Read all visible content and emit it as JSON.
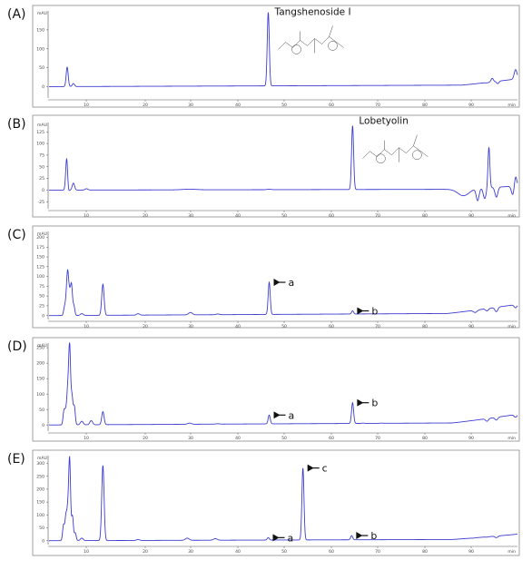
{
  "figure": {
    "colors": {
      "trace": "#3c3ccf",
      "frame": "#8a8a8a",
      "axis": "#555555",
      "text": "#111111"
    }
  },
  "chart_data": [
    {
      "type": "line",
      "panel": "(A)",
      "y_unit": "mAU",
      "x_unit": "min",
      "xlim": [
        0,
        100
      ],
      "ylim": [
        -30,
        200
      ],
      "x_ticks": [
        "10",
        "20",
        "30",
        "40",
        "50",
        "60",
        "70",
        "80",
        "90"
      ],
      "y_ticks": [
        0,
        50,
        100,
        150
      ],
      "peaks": [
        {
          "x": 3.9,
          "y": 62,
          "w": 0.22
        },
        {
          "x": 4.0,
          "y": -12,
          "w": 0.2
        },
        {
          "x": 5.2,
          "y": 8,
          "w": 0.25
        },
        {
          "x": 46.8,
          "y": 196,
          "w": 0.22
        },
        {
          "x": 93.5,
          "y": 10,
          "w": 0.3
        },
        {
          "x": 94.6,
          "y": 22,
          "w": 0.25
        },
        {
          "x": 95.8,
          "y": 8,
          "w": 0.25
        },
        {
          "x": 99.6,
          "y": 45,
          "w": 0.3
        }
      ],
      "baseline": {
        "start": 0,
        "end": 18,
        "rise_start": 88
      },
      "annotations": [
        {
          "text": "Tangshenoside I",
          "x": 47,
          "y": 175
        }
      ]
    },
    {
      "type": "line",
      "panel": "(B)",
      "y_unit": "mAU",
      "x_unit": "min",
      "xlim": [
        0,
        100
      ],
      "ylim": [
        -40,
        145
      ],
      "x_ticks": [
        "10",
        "20",
        "30",
        "40",
        "50",
        "60",
        "70",
        "80",
        "90"
      ],
      "y_ticks": [
        -25,
        0,
        25,
        50,
        75,
        100,
        125
      ],
      "peaks": [
        {
          "x": 3.8,
          "y": 78,
          "w": 0.22
        },
        {
          "x": 4.0,
          "y": -20,
          "w": 0.2
        },
        {
          "x": 5.2,
          "y": 15,
          "w": 0.25
        },
        {
          "x": 8.0,
          "y": 3,
          "w": 0.3
        },
        {
          "x": 30.0,
          "y": 2,
          "w": 1.5
        },
        {
          "x": 47.0,
          "y": 2,
          "w": 0.4
        },
        {
          "x": 64.8,
          "y": 138,
          "w": 0.22
        },
        {
          "x": 88.5,
          "y": -12,
          "w": 1.2
        },
        {
          "x": 91.5,
          "y": -22,
          "w": 0.3
        },
        {
          "x": 93.0,
          "y": -18,
          "w": 0.3
        },
        {
          "x": 93.9,
          "y": 92,
          "w": 0.2
        },
        {
          "x": 95.5,
          "y": -15,
          "w": 0.3
        },
        {
          "x": 99.0,
          "y": -10,
          "w": 0.3
        },
        {
          "x": 99.6,
          "y": 30,
          "w": 0.25
        }
      ],
      "baseline": {
        "start": 0,
        "end": 8,
        "rise_start": 88
      },
      "annotations": [
        {
          "text": "Lobetyolin",
          "x": 65,
          "y": 130
        }
      ]
    },
    {
      "type": "line",
      "panel": "(C)",
      "y_unit": "mAU",
      "x_unit": "min",
      "xlim": [
        0,
        100
      ],
      "ylim": [
        -10,
        215
      ],
      "x_ticks": [
        "10",
        "20",
        "30",
        "40",
        "50",
        "60",
        "70",
        "80",
        "90"
      ],
      "y_ticks": [
        0,
        25,
        50,
        75,
        100,
        125,
        150,
        175,
        200
      ],
      "peaks": [
        {
          "x": 3.3,
          "y": 20,
          "w": 0.2
        },
        {
          "x": 3.7,
          "y": 38,
          "w": 0.2
        },
        {
          "x": 4.0,
          "y": 98,
          "w": 0.2
        },
        {
          "x": 4.4,
          "y": 50,
          "w": 0.2
        },
        {
          "x": 4.8,
          "y": 75,
          "w": 0.2
        },
        {
          "x": 5.3,
          "y": 25,
          "w": 0.2
        },
        {
          "x": 7.0,
          "y": 5,
          "w": 0.3
        },
        {
          "x": 11.5,
          "y": 80,
          "w": 0.25
        },
        {
          "x": 19.0,
          "y": 5,
          "w": 0.3
        },
        {
          "x": 30.2,
          "y": 8,
          "w": 0.4
        },
        {
          "x": 36.0,
          "y": 4,
          "w": 0.4
        },
        {
          "x": 47.0,
          "y": 85,
          "w": 0.22
        },
        {
          "x": 64.8,
          "y": 12,
          "w": 0.22
        },
        {
          "x": 91.0,
          "y": 8,
          "w": 0.4
        },
        {
          "x": 93.5,
          "y": 12,
          "w": 0.3
        },
        {
          "x": 95.5,
          "y": 10,
          "w": 0.3
        },
        {
          "x": 99.6,
          "y": 20,
          "w": 0.3
        }
      ],
      "baseline": {
        "start": 0,
        "end": 25,
        "rise_start": 85
      },
      "annotations": [
        {
          "text": "a",
          "x": 47,
          "y": 85
        },
        {
          "text": "b",
          "x": 64.8,
          "y": 12
        }
      ]
    },
    {
      "type": "line",
      "panel": "(D)",
      "y_unit": "mAU",
      "x_unit": "min",
      "xlim": [
        0,
        100
      ],
      "ylim": [
        -20,
        265
      ],
      "x_ticks": [
        "10",
        "20",
        "30",
        "40",
        "50",
        "60",
        "70",
        "80",
        "90"
      ],
      "y_ticks": [
        0,
        50,
        100,
        150,
        200,
        250
      ],
      "peaks": [
        {
          "x": 3.2,
          "y": 45,
          "w": 0.2
        },
        {
          "x": 3.6,
          "y": 40,
          "w": 0.2
        },
        {
          "x": 4.0,
          "y": 105,
          "w": 0.2
        },
        {
          "x": 4.4,
          "y": 250,
          "w": 0.2
        },
        {
          "x": 4.9,
          "y": 90,
          "w": 0.2
        },
        {
          "x": 5.4,
          "y": 60,
          "w": 0.2
        },
        {
          "x": 7.0,
          "y": 12,
          "w": 0.3
        },
        {
          "x": 9.0,
          "y": 14,
          "w": 0.3
        },
        {
          "x": 11.5,
          "y": 43,
          "w": 0.25
        },
        {
          "x": 30.0,
          "y": 6,
          "w": 0.4
        },
        {
          "x": 36.0,
          "y": 4,
          "w": 0.4
        },
        {
          "x": 47.0,
          "y": 32,
          "w": 0.22
        },
        {
          "x": 64.8,
          "y": 72,
          "w": 0.22
        },
        {
          "x": 67.0,
          "y": 6,
          "w": 0.3
        },
        {
          "x": 71.0,
          "y": 6,
          "w": 0.3
        },
        {
          "x": 93.5,
          "y": 12,
          "w": 0.3
        },
        {
          "x": 95.5,
          "y": 16,
          "w": 0.3
        },
        {
          "x": 99.6,
          "y": 25,
          "w": 0.3
        }
      ],
      "baseline": {
        "start": 0,
        "end": 30,
        "rise_start": 86
      },
      "annotations": [
        {
          "text": "a",
          "x": 47,
          "y": 32
        },
        {
          "text": "b",
          "x": 64.8,
          "y": 72
        }
      ]
    },
    {
      "type": "line",
      "panel": "(E)",
      "y_unit": "mAU",
      "x_unit": "min",
      "xlim": [
        0,
        100
      ],
      "ylim": [
        -15,
        330
      ],
      "x_ticks": [
        "10",
        "20",
        "30",
        "40",
        "50",
        "60",
        "70",
        "80",
        "90"
      ],
      "y_ticks": [
        0,
        50,
        100,
        150,
        200,
        250,
        300
      ],
      "peaks": [
        {
          "x": 3.1,
          "y": 60,
          "w": 0.2
        },
        {
          "x": 3.6,
          "y": 90,
          "w": 0.2
        },
        {
          "x": 4.0,
          "y": 105,
          "w": 0.2
        },
        {
          "x": 4.4,
          "y": 310,
          "w": 0.2
        },
        {
          "x": 5.0,
          "y": 95,
          "w": 0.2
        },
        {
          "x": 5.6,
          "y": 30,
          "w": 0.2
        },
        {
          "x": 7.0,
          "y": 10,
          "w": 0.3
        },
        {
          "x": 11.5,
          "y": 292,
          "w": 0.25
        },
        {
          "x": 19.0,
          "y": 5,
          "w": 0.3
        },
        {
          "x": 29.5,
          "y": 10,
          "w": 0.4
        },
        {
          "x": 35.5,
          "y": 8,
          "w": 0.4
        },
        {
          "x": 46.8,
          "y": 12,
          "w": 0.22
        },
        {
          "x": 54.2,
          "y": 282,
          "w": 0.22
        },
        {
          "x": 64.6,
          "y": 20,
          "w": 0.22
        },
        {
          "x": 90.5,
          "y": 10,
          "w": 0.4
        },
        {
          "x": 93.5,
          "y": 14,
          "w": 0.3
        },
        {
          "x": 95.5,
          "y": 12,
          "w": 0.3
        },
        {
          "x": 99.6,
          "y": 25,
          "w": 0.3
        }
      ],
      "baseline": {
        "start": 0,
        "end": 22,
        "rise_start": 86
      },
      "annotations": [
        {
          "text": "a",
          "x": 46.8,
          "y": 12
        },
        {
          "text": "c",
          "x": 54.2,
          "y": 282
        },
        {
          "text": "b",
          "x": 64.6,
          "y": 20
        }
      ]
    }
  ]
}
